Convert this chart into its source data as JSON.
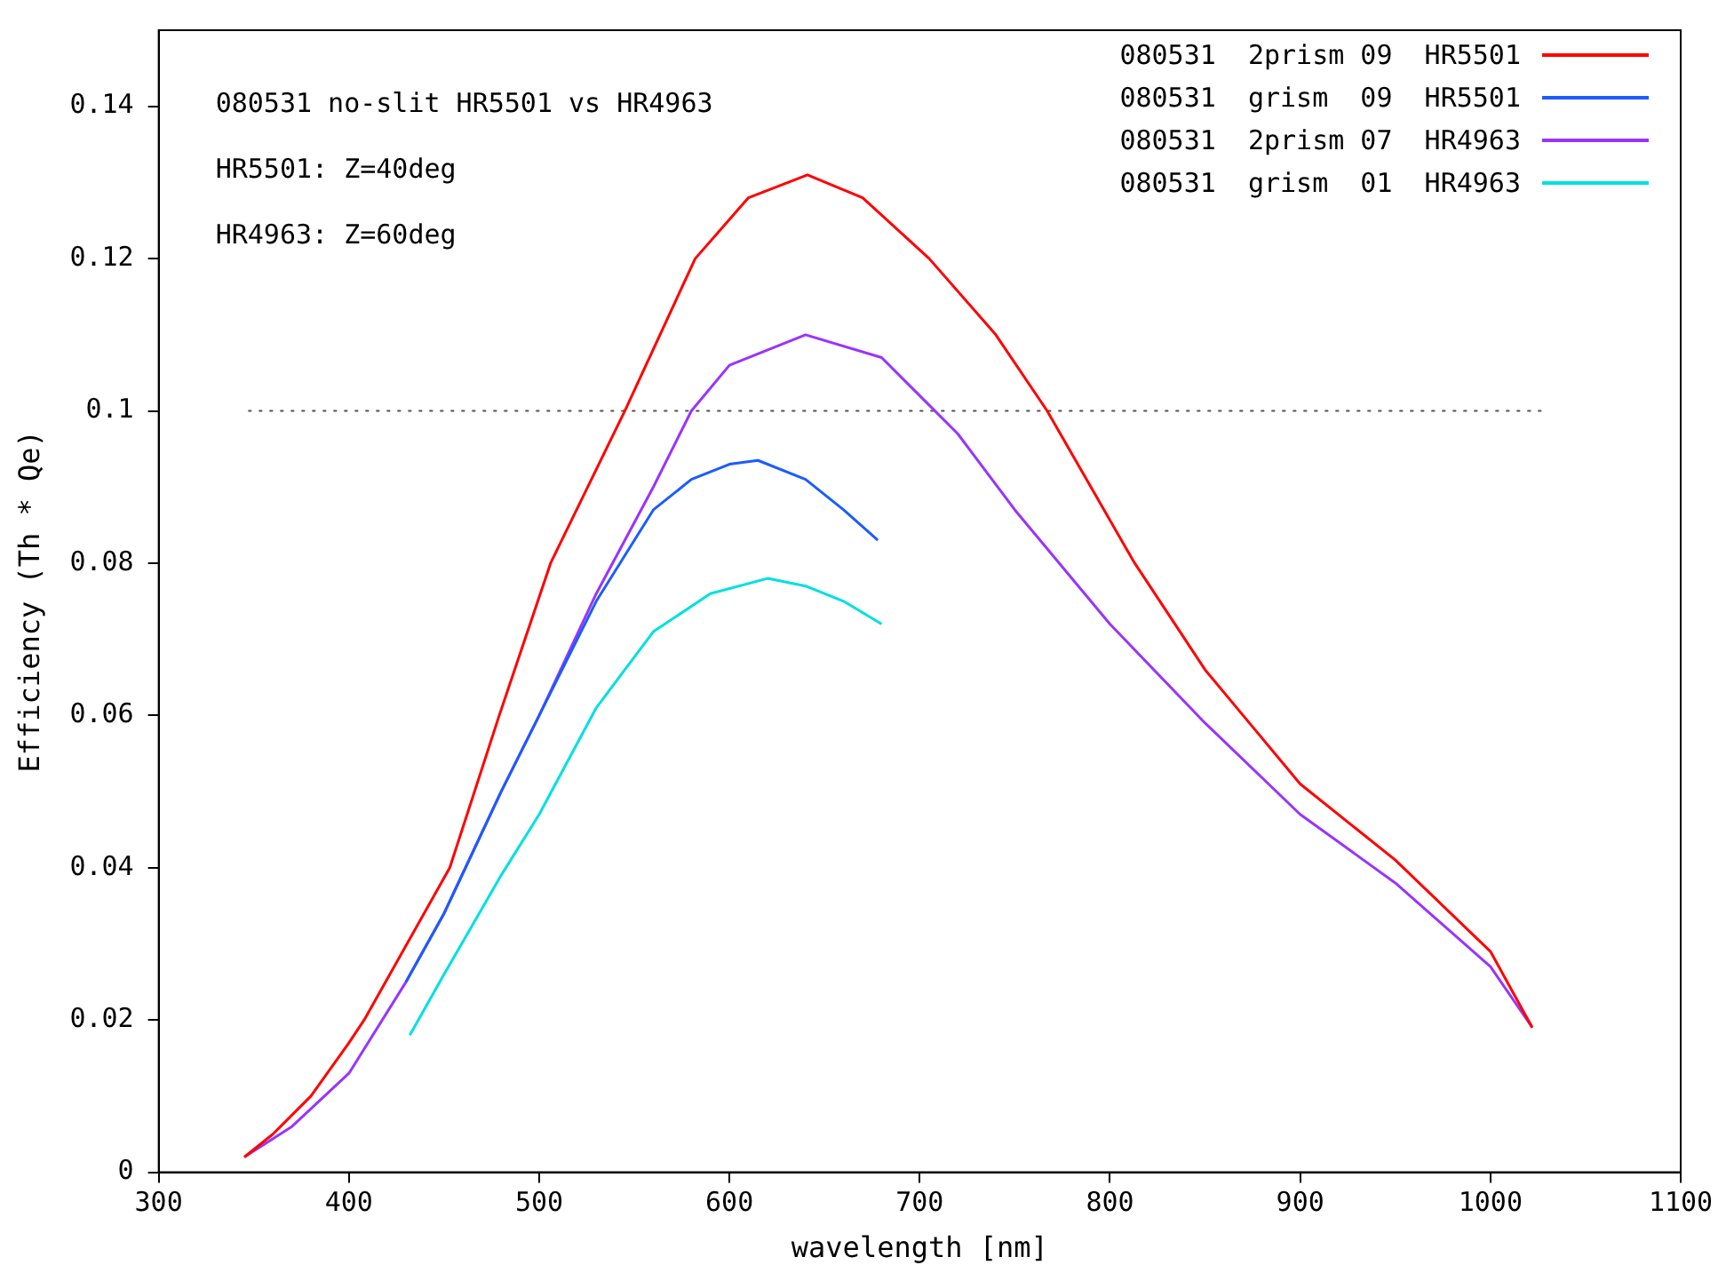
{
  "chart_data": {
    "type": "line",
    "xlabel": "wavelength [nm]",
    "ylabel": "Efficiency (Th * Qe)",
    "annotations": [
      "080531 no-slit HR5501 vs HR4963",
      "HR5501: Z=40deg",
      "HR4963: Z=60deg"
    ],
    "xlim": [
      300,
      1100
    ],
    "xticks": [
      300,
      400,
      500,
      600,
      700,
      800,
      900,
      1000,
      1100
    ],
    "ylim": [
      0,
      0.15
    ],
    "yticks": [
      0,
      0.02,
      0.04,
      0.06,
      0.08,
      0.1,
      0.12,
      0.14
    ],
    "grid": false,
    "legend": "top right",
    "marker": "none",
    "series": [
      {
        "name": "080531  2prism 09  HR5501",
        "color": "#ff0000",
        "x": [
          345,
          360,
          380,
          400,
          408,
          453,
          479,
          506,
          545,
          582,
          610,
          641,
          670,
          705,
          740,
          767,
          813,
          850,
          870,
          900,
          950,
          1000,
          1022
        ],
        "values": [
          0.002,
          0.005,
          0.01,
          0.017,
          0.02,
          0.04,
          0.06,
          0.08,
          0.1,
          0.12,
          0.128,
          0.131,
          0.128,
          0.12,
          0.11,
          0.1,
          0.08,
          0.066,
          0.06,
          0.051,
          0.041,
          0.029,
          0.019
        ]
      },
      {
        "name": "080531  grism  09  HR5501",
        "color": "#1a5cff",
        "x": [
          430,
          450,
          480,
          500,
          530,
          560,
          580,
          600,
          615,
          640,
          660,
          678
        ],
        "values": [
          0.025,
          0.034,
          0.05,
          0.06,
          0.075,
          0.087,
          0.091,
          0.093,
          0.0935,
          0.091,
          0.087,
          0.083
        ]
      },
      {
        "name": "080531  2prism 07  HR4963",
        "color": "#9933ff",
        "x": [
          345,
          370,
          400,
          430,
          450,
          480,
          500,
          530,
          560,
          580,
          600,
          640,
          680,
          700,
          720,
          750,
          800,
          850,
          900,
          950,
          1000,
          1022
        ],
        "values": [
          0.002,
          0.006,
          0.013,
          0.025,
          0.034,
          0.05,
          0.06,
          0.076,
          0.09,
          0.1,
          0.106,
          0.11,
          0.107,
          0.102,
          0.097,
          0.087,
          0.072,
          0.059,
          0.047,
          0.038,
          0.027,
          0.019
        ]
      },
      {
        "name": "080531  grism  01  HR4963",
        "color": "#00e0e0",
        "x": [
          432,
          450,
          480,
          500,
          530,
          560,
          590,
          620,
          640,
          660,
          680
        ],
        "values": [
          0.018,
          0.026,
          0.039,
          0.047,
          0.061,
          0.071,
          0.076,
          0.078,
          0.077,
          0.075,
          0.072
        ]
      },
      {
        "color": "#555555",
        "line_style": "dotted",
        "x": [
          347,
          1028
        ],
        "values": [
          0.1,
          0.1
        ]
      }
    ]
  }
}
